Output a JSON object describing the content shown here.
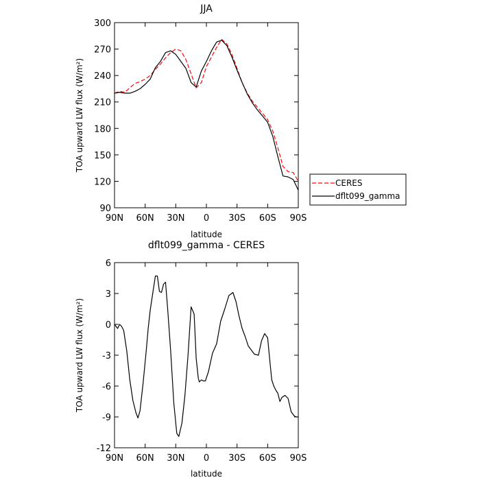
{
  "chart_data": [
    {
      "type": "line",
      "title": "JJA",
      "xlabel": "latitude",
      "ylabel": "TOA upward LW flux (W/m²)",
      "xlim": [
        90,
        -90
      ],
      "ylim": [
        90,
        300
      ],
      "xticks": [
        90,
        60,
        30,
        0,
        -30,
        -60,
        -90
      ],
      "xtick_labels": [
        "90N",
        "60N",
        "30N",
        "0",
        "30S",
        "60S",
        "90S"
      ],
      "yticks": [
        90,
        120,
        150,
        180,
        210,
        240,
        270,
        300
      ],
      "legend": "right",
      "series": [
        {
          "name": "CERES",
          "color": "#ff0000",
          "dash": "dashed",
          "x": [
            90,
            85,
            80,
            75,
            70,
            65,
            60,
            55,
            50,
            45,
            40,
            35,
            30,
            25,
            20,
            15,
            10,
            5,
            0,
            -5,
            -10,
            -15,
            -20,
            -25,
            -30,
            -35,
            -40,
            -45,
            -50,
            -55,
            -60,
            -65,
            -70,
            -75,
            -80,
            -85,
            -90
          ],
          "values": [
            220,
            222,
            221,
            226,
            231,
            233,
            236,
            240,
            247,
            253,
            260,
            266,
            270,
            268,
            258,
            242,
            226,
            232,
            250,
            261,
            272,
            281,
            276,
            264,
            248,
            232,
            220,
            211,
            204,
            197,
            190,
            177,
            158,
            137,
            131,
            130,
            120
          ]
        },
        {
          "name": "dflt099_gamma",
          "color": "#000000",
          "dash": "solid",
          "x": [
            90,
            85,
            80,
            75,
            70,
            65,
            60,
            55,
            50,
            45,
            40,
            35,
            30,
            25,
            20,
            15,
            10,
            5,
            0,
            -5,
            -10,
            -15,
            -20,
            -25,
            -30,
            -35,
            -40,
            -45,
            -50,
            -55,
            -60,
            -65,
            -70,
            -75,
            -80,
            -85,
            -90
          ],
          "values": [
            220,
            221,
            220,
            220,
            222,
            225,
            230,
            236,
            249,
            256,
            266,
            268,
            264,
            256,
            248,
            232,
            227,
            245,
            256,
            268,
            278,
            280,
            274,
            261,
            246,
            232,
            219,
            209,
            201,
            194,
            187,
            171,
            148,
            126,
            125,
            122,
            110
          ]
        }
      ]
    },
    {
      "type": "line",
      "title": "dflt099_gamma - CERES",
      "xlabel": "latitude",
      "ylabel": "TOA upward LW flux (W/m²)",
      "xlim": [
        90,
        -90
      ],
      "ylim": [
        -12,
        6
      ],
      "xticks": [
        90,
        60,
        30,
        0,
        -30,
        -60,
        -90
      ],
      "xtick_labels": [
        "90N",
        "60N",
        "30N",
        "0",
        "30S",
        "60S",
        "90S"
      ],
      "yticks": [
        -12,
        -9,
        -6,
        -3,
        0,
        3,
        6
      ],
      "series": [
        {
          "color": "#000000",
          "dash": "solid",
          "x": [
            90,
            87,
            85,
            83,
            81,
            78,
            75,
            72,
            69,
            67,
            65,
            62,
            59,
            57,
            55,
            52,
            50,
            48,
            46,
            44,
            42,
            40,
            38,
            35,
            32,
            29,
            27,
            24,
            21,
            18,
            15,
            12,
            10,
            8,
            7,
            5,
            3,
            1,
            -2,
            -6,
            -10,
            -14,
            -18,
            -22,
            -26,
            -29,
            -32,
            -35,
            -38,
            -41,
            -44,
            -47,
            -51,
            -54,
            -57,
            -60,
            -62,
            -64,
            -66,
            -68,
            -70,
            -72,
            -74,
            -77,
            -80,
            -83,
            -86,
            -88,
            -90
          ],
          "values": [
            0,
            -0.4,
            0,
            -0.2,
            -0.6,
            -2.6,
            -5.4,
            -7.4,
            -8.6,
            -9.1,
            -8.4,
            -5.7,
            -2.6,
            -0.4,
            1.4,
            3.4,
            4.7,
            4.7,
            3.2,
            3.1,
            3.9,
            4.1,
            1.6,
            -2.6,
            -7.6,
            -10.6,
            -10.9,
            -9.6,
            -6.9,
            -3.0,
            1.7,
            1.0,
            -3.3,
            -5.2,
            -5.6,
            -5.4,
            -5.5,
            -5.5,
            -4.6,
            -2.8,
            -1.9,
            0.3,
            1.5,
            2.8,
            3.1,
            2.2,
            0.8,
            -0.4,
            -1.2,
            -2.1,
            -2.5,
            -2.9,
            -3.0,
            -1.6,
            -0.9,
            -1.3,
            -3.4,
            -5.4,
            -6.0,
            -6.4,
            -6.7,
            -7.5,
            -7.1,
            -6.9,
            -7.2,
            -8.5,
            -8.9,
            -9.0,
            -9.0
          ]
        }
      ]
    }
  ]
}
